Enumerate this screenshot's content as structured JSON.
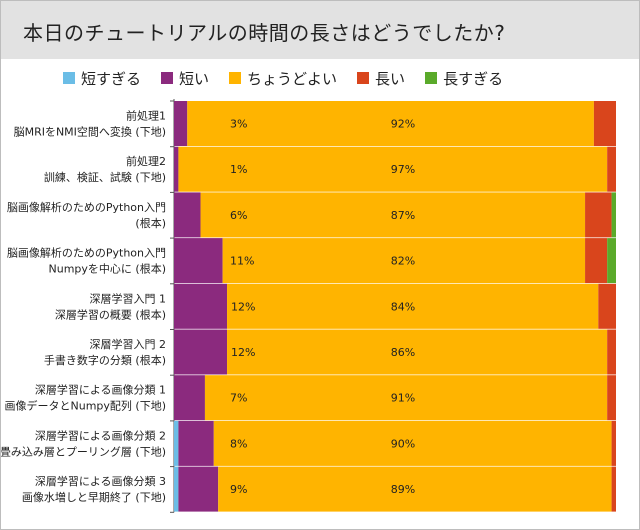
{
  "title": "本日のチュートリアルの時間の長さはどうでしたか?",
  "legend": [
    {
      "label": "短すぎる",
      "color": "#6bbde6"
    },
    {
      "label": "短い",
      "color": "#8b2a7e"
    },
    {
      "label": "ちょうどよい",
      "color": "#ffb400"
    },
    {
      "label": "長い",
      "color": "#d9451c"
    },
    {
      "label": "長すぎる",
      "color": "#5aaa2a"
    }
  ],
  "chart_data": {
    "type": "bar",
    "orientation": "horizontal",
    "stacked": true,
    "title": "本日のチュートリアルの時間の長さはどうでしたか?",
    "xlim": [
      0,
      100
    ],
    "legend_position": "top",
    "categories": [
      [
        "前処理1",
        "脳MRIをNMI空間へ変換 (下地)"
      ],
      [
        "前処理2",
        "訓練、検証、試験 (下地)"
      ],
      [
        "脳画像解析のためのPython入門",
        "(根本)"
      ],
      [
        "脳画像解析のためのPython入門",
        "Numpyを中心に (根本)"
      ],
      [
        "深層学習入門 1",
        "深層学習の概要 (根本)"
      ],
      [
        "深層学習入門 2",
        "手書き数字の分類 (根本)"
      ],
      [
        "深層学習による画像分類 1",
        "画像データとNumpy配列 (下地)"
      ],
      [
        "深層学習による画像分類 2",
        "畳み込み層とプーリング層 (下地)"
      ],
      [
        "深層学習による画像分類 3",
        "画像水増しと早期終了 (下地)"
      ]
    ],
    "series": [
      {
        "name": "短すぎる",
        "color": "#6bbde6",
        "values": [
          0,
          0,
          0,
          0,
          0,
          0,
          0,
          1,
          1
        ]
      },
      {
        "name": "短い",
        "color": "#8b2a7e",
        "values": [
          3,
          1,
          6,
          11,
          12,
          12,
          7,
          8,
          9
        ]
      },
      {
        "name": "ちょうどよい",
        "color": "#ffb400",
        "values": [
          92,
          97,
          87,
          82,
          84,
          86,
          91,
          90,
          89
        ]
      },
      {
        "name": "長い",
        "color": "#d9451c",
        "values": [
          5,
          2,
          6,
          5,
          4,
          2,
          2,
          1,
          1
        ]
      },
      {
        "name": "長すぎる",
        "color": "#5aaa2a",
        "values": [
          0,
          0,
          1,
          2,
          0,
          0,
          0,
          0,
          0
        ]
      }
    ],
    "data_labels": [
      [
        "3%",
        "92%"
      ],
      [
        "1%",
        "97%"
      ],
      [
        "6%",
        "87%"
      ],
      [
        "11%",
        "82%"
      ],
      [
        "12%",
        "84%"
      ],
      [
        "12%",
        "86%"
      ],
      [
        "7%",
        "91%"
      ],
      [
        "8%",
        "90%"
      ],
      [
        "9%",
        "89%"
      ]
    ]
  }
}
